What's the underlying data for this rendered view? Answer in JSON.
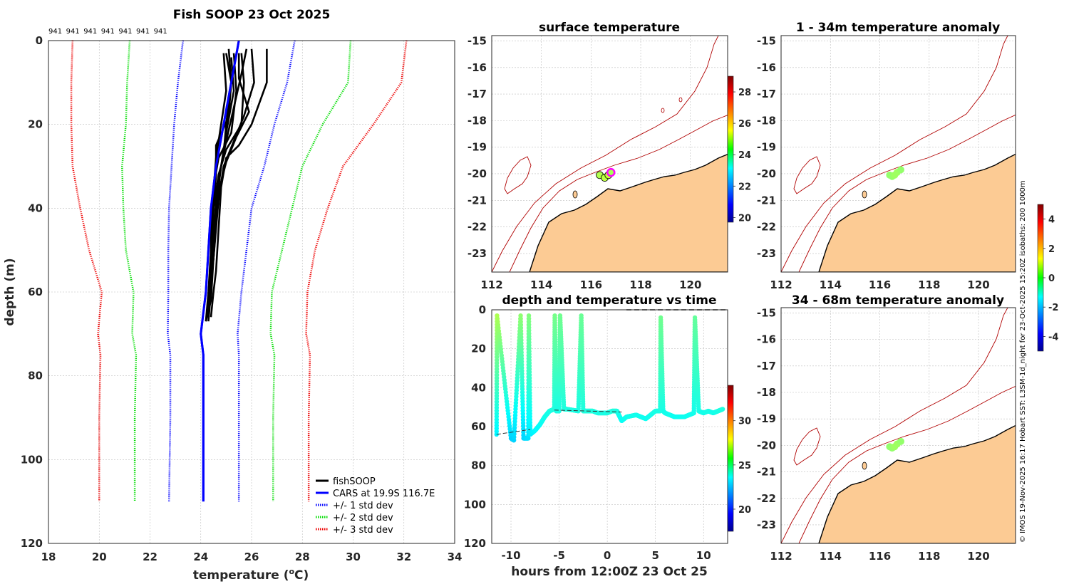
{
  "figure_title": "Fish SOOP 23 Oct 2025",
  "footer_note": "© IMOS 19-Nov-2025 16:17 Hobart SST: L3SM-1d_night for 23-Oct-2025 15:20Z isobaths: 200  1000m",
  "colors": {
    "profile": "#000000",
    "cars": "#0000ff",
    "std1": "#0000ff",
    "std2": "#00dd00",
    "std3": "#ee0000",
    "land": "#fccb94",
    "coast": "#000000",
    "isobath": "#b00000"
  },
  "chart_data": [
    {
      "id": "profile",
      "type": "line",
      "title": "Fish SOOP 23 Oct 2025",
      "xlabel": "temperature (",
      "xlabel_sup": "o",
      "xlabel_end": "C)",
      "ylabel": "depth (m)",
      "xlim": [
        18,
        34
      ],
      "ylim": [
        0,
        120
      ],
      "yreversed": true,
      "xticks": [
        18,
        20,
        22,
        24,
        26,
        28,
        30,
        32,
        34
      ],
      "yticks": [
        0,
        20,
        40,
        60,
        80,
        100,
        120
      ],
      "top_labels": [
        "941",
        "941",
        "941",
        "941",
        "941",
        "941",
        "941"
      ],
      "series": [
        {
          "name": "CARS at 19.9S 116.7E",
          "style": "solid",
          "color": "#0000ff",
          "depth": [
            0,
            10,
            20,
            30,
            40,
            50,
            60,
            70,
            75,
            90,
            110
          ],
          "temp": [
            25.5,
            25.2,
            24.9,
            24.6,
            24.4,
            24.3,
            24.2,
            24.0,
            24.1,
            24.1,
            24.1
          ]
        },
        {
          "name": "+/- 1 std dev (low)",
          "style": "dotted",
          "color": "#0000ff",
          "depth": [
            0,
            10,
            20,
            30,
            40,
            50,
            60,
            70,
            75,
            90,
            110
          ],
          "temp": [
            23.3,
            23.1,
            22.95,
            22.85,
            22.75,
            22.72,
            22.72,
            22.7,
            22.8,
            22.8,
            22.75
          ]
        },
        {
          "name": "+/- 1 std dev (high)",
          "style": "dotted",
          "color": "#0000ff",
          "depth": [
            0,
            10,
            20,
            30,
            40,
            50,
            60,
            70,
            75,
            90,
            110
          ],
          "temp": [
            27.7,
            27.4,
            26.9,
            26.5,
            26.0,
            25.8,
            25.6,
            25.45,
            25.5,
            25.5,
            25.5
          ]
        },
        {
          "name": "+/- 2 std dev (low)",
          "style": "dotted",
          "color": "#00dd00",
          "depth": [
            0,
            10,
            20,
            30,
            40,
            50,
            60,
            70,
            75,
            90,
            110
          ],
          "temp": [
            21.2,
            21.1,
            21.05,
            20.9,
            20.95,
            21.05,
            21.35,
            21.3,
            21.45,
            21.4,
            21.4
          ]
        },
        {
          "name": "+/- 2 std dev (high)",
          "style": "dotted",
          "color": "#00dd00",
          "depth": [
            0,
            10,
            20,
            30,
            40,
            50,
            60,
            70,
            75,
            90,
            110
          ],
          "temp": [
            29.9,
            29.8,
            28.8,
            28.0,
            27.6,
            27.2,
            26.8,
            26.75,
            26.9,
            26.85,
            26.85
          ]
        },
        {
          "name": "+/- 3 std dev (low)",
          "style": "dotted",
          "color": "#ee0000",
          "depth": [
            0,
            10,
            20,
            30,
            40,
            50,
            60,
            70,
            75,
            90,
            110
          ],
          "temp": [
            18.95,
            18.9,
            18.9,
            18.95,
            19.25,
            19.6,
            20.1,
            19.95,
            20.05,
            20.0,
            20.0
          ]
        },
        {
          "name": "+/- 3 std dev (high)",
          "style": "dotted",
          "color": "#ee0000",
          "depth": [
            0,
            10,
            20,
            30,
            40,
            50,
            60,
            70,
            75,
            90,
            110
          ],
          "temp": [
            32.1,
            31.9,
            30.8,
            29.6,
            29.0,
            28.5,
            28.2,
            28.15,
            28.3,
            28.25,
            28.25
          ]
        }
      ],
      "fish_profiles": [
        {
          "depth": [
            2,
            10,
            20,
            25,
            28,
            35,
            45,
            55,
            60,
            66
          ],
          "temp": [
            26.6,
            26.6,
            26.0,
            25.5,
            25.0,
            24.8,
            24.7,
            24.6,
            24.5,
            24.4
          ]
        },
        {
          "depth": [
            2,
            10,
            18,
            24,
            30,
            38,
            45,
            52,
            58,
            64
          ],
          "temp": [
            26.0,
            26.1,
            25.7,
            25.3,
            24.9,
            24.7,
            24.6,
            24.5,
            24.4,
            24.3
          ]
        },
        {
          "depth": [
            3,
            10,
            20,
            26,
            32,
            40,
            50,
            60,
            67
          ],
          "temp": [
            25.6,
            25.7,
            25.6,
            25.0,
            24.7,
            24.5,
            24.4,
            24.3,
            24.2
          ]
        },
        {
          "depth": [
            3,
            12,
            22,
            28,
            35,
            45,
            55,
            65
          ],
          "temp": [
            25.3,
            25.4,
            25.2,
            24.7,
            24.5,
            24.4,
            24.4,
            24.3
          ]
        },
        {
          "depth": [
            3,
            10,
            18,
            25,
            32,
            40,
            50,
            60,
            66
          ],
          "temp": [
            25.0,
            25.2,
            25.1,
            24.6,
            24.6,
            24.5,
            24.4,
            24.4,
            24.3
          ]
        },
        {
          "depth": [
            3,
            12,
            20,
            28,
            36,
            46,
            56,
            64
          ],
          "temp": [
            24.9,
            25.0,
            24.8,
            24.6,
            24.5,
            24.5,
            24.4,
            24.3
          ]
        },
        {
          "depth": [
            2,
            8,
            16,
            24,
            30,
            38,
            48,
            58,
            66
          ],
          "temp": [
            25.8,
            25.6,
            25.3,
            25.0,
            24.8,
            24.6,
            24.5,
            24.4,
            24.3
          ]
        },
        {
          "depth": [
            4,
            12,
            22,
            30,
            40,
            50,
            60,
            67
          ],
          "temp": [
            25.2,
            25.3,
            25.0,
            24.8,
            24.6,
            24.5,
            24.4,
            24.3
          ]
        },
        {
          "depth": [
            3,
            9,
            17,
            23,
            29,
            36,
            44,
            52,
            62,
            67
          ],
          "temp": [
            25.5,
            25.5,
            25.9,
            25.4,
            25.0,
            24.7,
            24.6,
            24.5,
            24.4,
            24.2
          ]
        },
        {
          "depth": [
            2,
            10,
            20,
            27,
            33,
            42,
            52,
            63
          ],
          "temp": [
            25.1,
            25.2,
            25.0,
            24.9,
            24.7,
            24.6,
            24.5,
            24.3
          ]
        }
      ],
      "legend": [
        "fishSOOP",
        "CARS at 19.9S 116.7E",
        "+/- 1 std dev",
        "+/- 2 std dev",
        "+/- 3 std dev"
      ]
    },
    {
      "id": "surface-map",
      "type": "scatter",
      "title": "surface temperature",
      "xlim": [
        112,
        121.5
      ],
      "ylim": [
        -23.7,
        -14.8
      ],
      "xticks": [
        112,
        114,
        116,
        118,
        120
      ],
      "yticks": [
        -15,
        -16,
        -17,
        -18,
        -19,
        -20,
        -21,
        -22,
        -23
      ],
      "colorbar_ticks": [
        20,
        22,
        24,
        26,
        28
      ],
      "colorbar_range": [
        19.7,
        29
      ],
      "points": [
        {
          "lon": 116.35,
          "lat": -20.05,
          "value": 24.8
        },
        {
          "lon": 116.55,
          "lat": -20.15,
          "value": 24.9
        },
        {
          "lon": 116.7,
          "lat": -20.05,
          "value": 25.0
        },
        {
          "lon": 116.8,
          "lat": -19.95,
          "value": 24.7
        }
      ]
    },
    {
      "id": "anomaly-1-34",
      "type": "scatter",
      "title": "1 - 34m temperature anomaly",
      "xlim": [
        112,
        121.5
      ],
      "ylim": [
        -23.7,
        -14.8
      ],
      "xticks": [
        112,
        114,
        116,
        118,
        120
      ],
      "yticks": [
        -15,
        -16,
        -17,
        -18,
        -19,
        -20,
        -21,
        -22,
        -23
      ],
      "points": [
        {
          "lon": 116.4,
          "lat": -20.05,
          "value": 0.2
        },
        {
          "lon": 116.5,
          "lat": -20.1,
          "value": 0.2
        },
        {
          "lon": 116.6,
          "lat": -20.05,
          "value": 0.3
        },
        {
          "lon": 116.7,
          "lat": -19.95,
          "value": 0.3
        },
        {
          "lon": 116.85,
          "lat": -19.85,
          "value": 0.2
        }
      ]
    },
    {
      "id": "anomaly-34-68",
      "type": "scatter",
      "title": "34 - 68m temperature anomaly",
      "xlim": [
        112,
        121.5
      ],
      "ylim": [
        -23.7,
        -14.8
      ],
      "xticks": [
        112,
        114,
        116,
        118,
        120
      ],
      "yticks": [
        -15,
        -16,
        -17,
        -18,
        -19,
        -20,
        -21,
        -22,
        -23
      ],
      "points": [
        {
          "lon": 116.4,
          "lat": -20.05,
          "value": 0.2
        },
        {
          "lon": 116.5,
          "lat": -20.1,
          "value": 0.2
        },
        {
          "lon": 116.6,
          "lat": -20.05,
          "value": 0.3
        },
        {
          "lon": 116.7,
          "lat": -19.95,
          "value": 0.3
        },
        {
          "lon": 116.85,
          "lat": -19.85,
          "value": 0.2
        }
      ],
      "colorbar_ticks": [
        -4,
        -2,
        0,
        2,
        4
      ],
      "colorbar_range": [
        -5,
        5
      ]
    },
    {
      "id": "depth-time",
      "type": "scatter",
      "title": "depth and temperature vs time",
      "xlabel": "hours from 12:00Z 23 Oct 25",
      "xlim": [
        -12,
        12.5
      ],
      "ylim": [
        0,
        120
      ],
      "yreversed": true,
      "xticks": [
        -10,
        -5,
        0,
        5,
        10
      ],
      "yticks": [
        0,
        20,
        40,
        60,
        80,
        100,
        120
      ],
      "colorbar_ticks": [
        20,
        25,
        30
      ],
      "colorbar_range": [
        17.5,
        34
      ],
      "track_hours": [
        -11.5,
        -11.45,
        -10.0,
        -9.7,
        -9.0,
        -8.7,
        -8.2,
        -8.15,
        -8.0,
        -7.5,
        -7.0,
        -6.5,
        -6.0,
        -5.5,
        -5.45,
        -5.3,
        -5.0,
        -4.9,
        -4.5,
        -4.2,
        -3.0,
        -2.7,
        -2.5,
        -2.0,
        -1.5,
        -1.0,
        -0.5,
        0.0,
        0.5,
        1.0,
        1.1,
        1.5,
        2.0,
        3.0,
        4.0,
        5.0,
        5.5,
        5.55,
        5.8,
        6.0,
        6.5,
        7.0,
        8.0,
        9.0,
        9.1,
        9.5,
        10.0,
        10.5,
        11.0,
        11.5,
        12.0
      ],
      "track_depth": [
        64,
        3,
        66,
        67,
        3,
        66,
        66,
        3,
        64,
        62,
        59,
        55,
        52,
        51,
        3,
        52,
        52,
        3,
        51,
        51,
        52,
        3,
        52,
        52,
        52,
        53,
        53,
        53,
        52,
        52,
        53,
        57,
        55,
        54,
        56,
        52,
        52,
        4,
        52,
        53,
        54,
        55,
        55,
        53,
        4,
        52,
        53,
        52,
        53,
        52,
        51
      ],
      "track_temp": [
        23.5,
        26.5,
        23.0,
        23.0,
        26.0,
        23.0,
        23.2,
        25.8,
        23.4,
        23.6,
        23.8,
        24.0,
        24.1,
        24.2,
        25.6,
        24.1,
        24.1,
        25.5,
        24.2,
        24.2,
        24.1,
        25.4,
        24.2,
        24.2,
        24.2,
        24.1,
        24.1,
        24.1,
        24.2,
        24.2,
        24.1,
        23.8,
        24.0,
        24.0,
        23.9,
        24.1,
        24.1,
        25.5,
        24.1,
        24.0,
        24.0,
        23.9,
        23.9,
        24.0,
        25.3,
        24.1,
        24.0,
        24.1,
        24.0,
        24.1,
        24.2
      ]
    }
  ]
}
